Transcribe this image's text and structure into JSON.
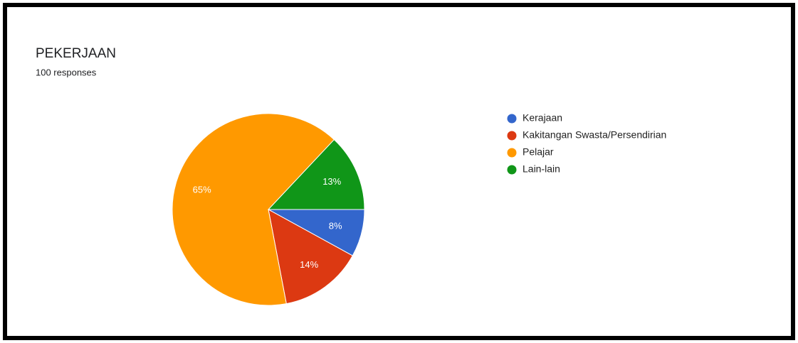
{
  "chart_data": {
    "type": "pie",
    "title": "PEKERJAAN",
    "subtitle": "100 responses",
    "categories": [
      "Kerajaan",
      "Kakitangan Swasta/Persendirian",
      "Pelajar",
      "Lain-lain"
    ],
    "values": [
      8,
      14,
      65,
      13
    ],
    "value_labels": [
      "8%",
      "14%",
      "65%",
      "13%"
    ],
    "colors": [
      "#3366cc",
      "#dc3912",
      "#ff9900",
      "#109618"
    ],
    "legend": "right"
  }
}
